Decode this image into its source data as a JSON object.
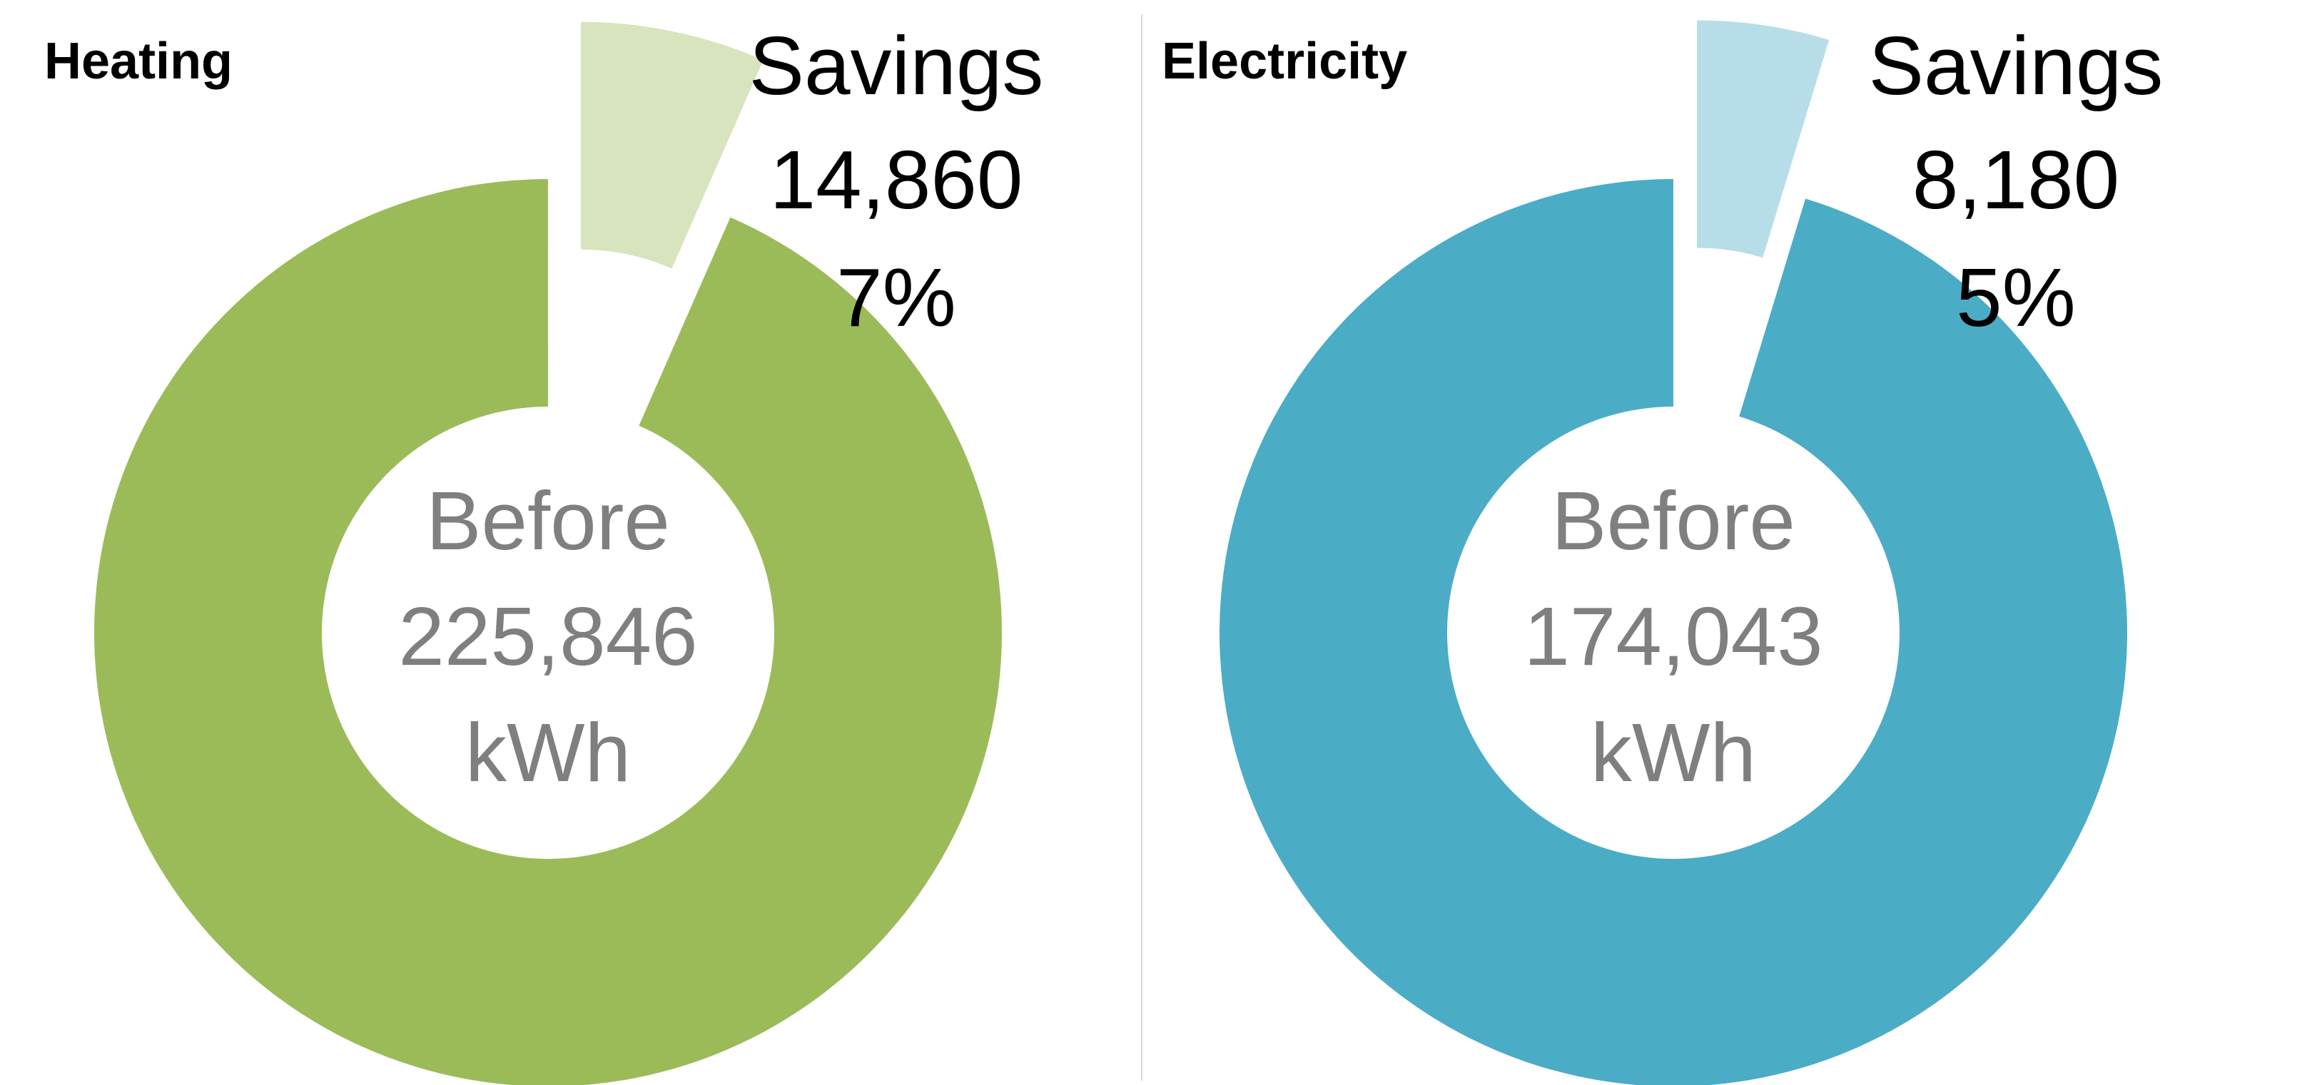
{
  "chart_data": [
    {
      "type": "donut",
      "title": "Heating",
      "unit": "kWh",
      "before_label": "Before",
      "before_value": 225846,
      "before_text": "225,846",
      "savings_label": "Savings",
      "savings_value": 14860,
      "savings_text": "14,860",
      "savings_percent_text": "7%",
      "colors": {
        "main": "#9BBB59",
        "savings": "#D7E4BD"
      }
    },
    {
      "type": "donut",
      "title": "Electricity",
      "unit": "kWh",
      "before_label": "Before",
      "before_value": 174043,
      "before_text": "174,043",
      "savings_label": "Savings",
      "savings_value": 8180,
      "savings_text": "8,180",
      "savings_percent_text": "5%",
      "colors": {
        "main": "#4BACC6",
        "savings": "#B7DEE8"
      }
    }
  ]
}
